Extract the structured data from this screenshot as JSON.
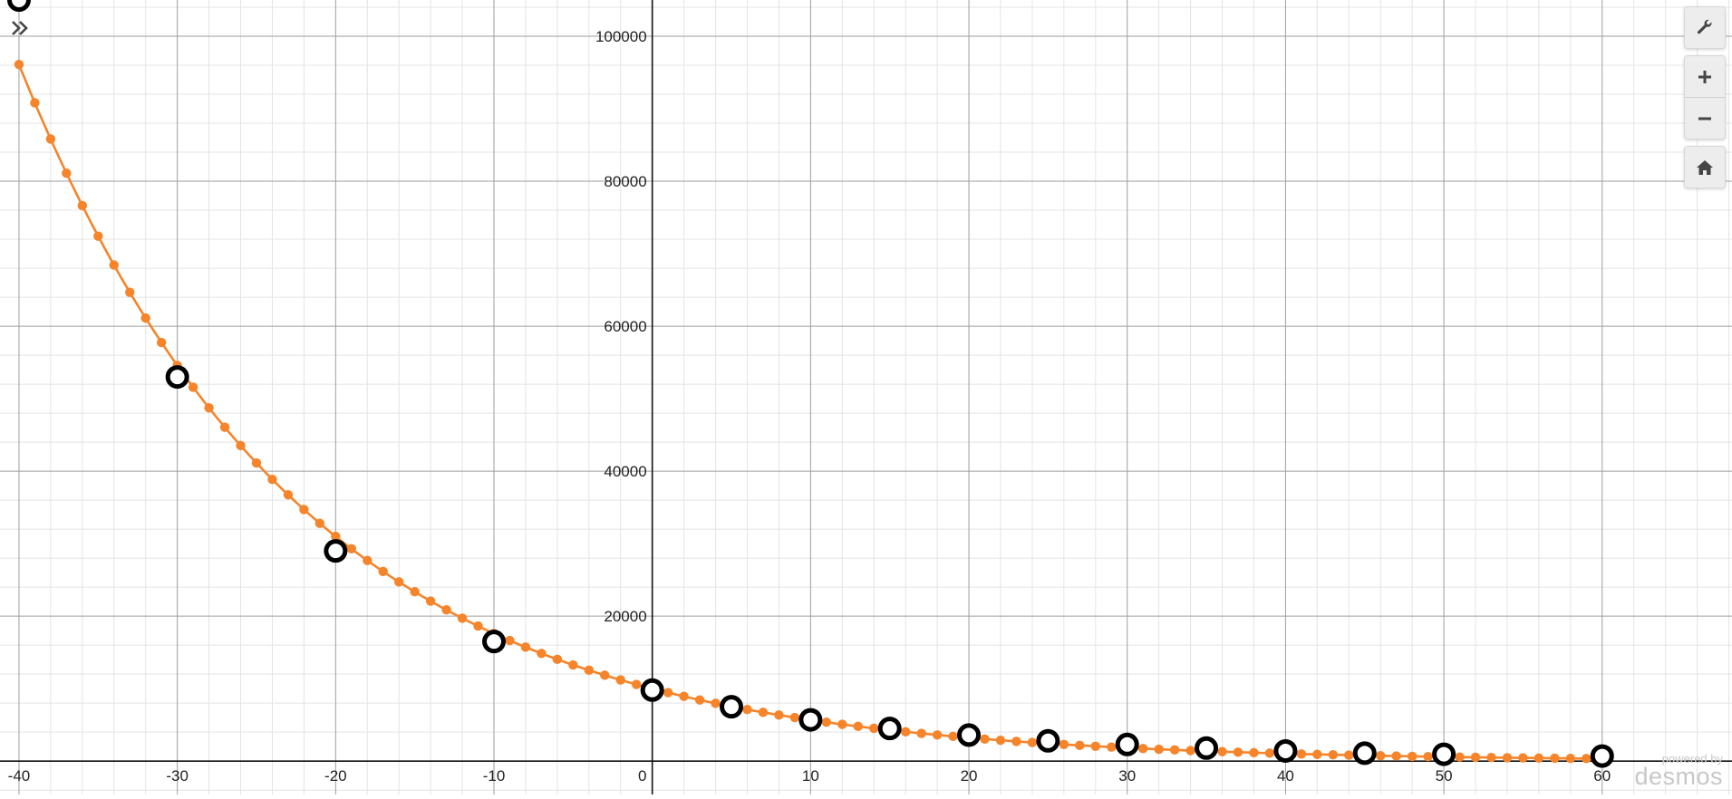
{
  "app": {
    "watermark_top": "powered by",
    "watermark_brand": "desmos"
  },
  "controls": [
    {
      "name": "graph-settings-button",
      "icon": "wrench-icon"
    },
    {
      "name": "zoom-in-button",
      "icon": "plus-icon"
    },
    {
      "name": "zoom-out-button",
      "icon": "minus-icon"
    },
    {
      "name": "default-viewport-button",
      "icon": "home-icon"
    }
  ],
  "chart_data": {
    "type": "scatter",
    "title": "",
    "xlabel": "",
    "ylabel": "",
    "xlim": [
      -41.2,
      68.2
    ],
    "ylim": [
      -4600,
      105000
    ],
    "grid": true,
    "x_ticks": [
      -40,
      -30,
      -20,
      -10,
      0,
      10,
      20,
      30,
      40,
      50,
      60
    ],
    "x_tick_labels": [
      "-40",
      "-30",
      "-20",
      "-10",
      "0",
      "10",
      "20",
      "30",
      "40",
      "50",
      "60"
    ],
    "y_ticks": [
      20000,
      40000,
      60000,
      80000,
      100000
    ],
    "y_tick_labels": [
      "20000",
      "40000",
      "60000",
      "80000",
      "100000"
    ],
    "curve_color": "#f5842a",
    "series": [
      {
        "style": "curve-with-points",
        "color": "#f5842a",
        "x_range": [
          -40,
          60
        ],
        "step": 1,
        "formula": "y = 10000 * 0.945^x",
        "y_at_0": 10000,
        "decay_per_unit_x": 0.945
      },
      {
        "style": "open-circle",
        "color": "#000000",
        "x": [
          -40,
          -30,
          -20,
          -10,
          0,
          5,
          10,
          15,
          20,
          25,
          30,
          35,
          40,
          45,
          50,
          60
        ],
        "y": [
          105000,
          53000,
          29000,
          16500,
          9800,
          7500,
          5700,
          4500,
          3600,
          2800,
          2300,
          1800,
          1400,
          1100,
          950,
          700
        ]
      }
    ]
  }
}
